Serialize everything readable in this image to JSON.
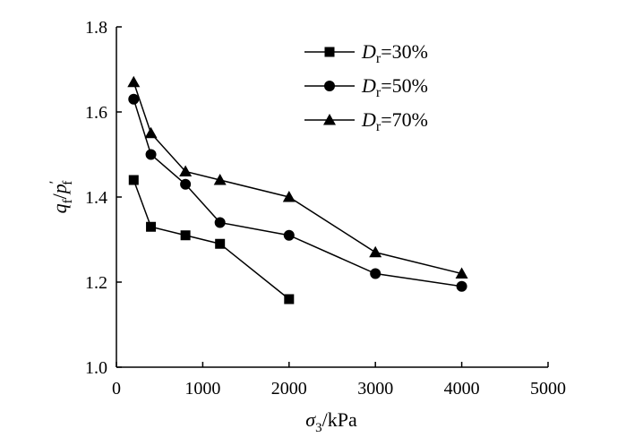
{
  "chart_data": {
    "type": "line",
    "xlabel": {
      "symbol": "σ",
      "sub": "3",
      "unit": "/kPa"
    },
    "ylabel": {
      "num": "q",
      "num_sub": "f",
      "den": "p",
      "den_prime": "′",
      "den_sub": "f"
    },
    "xlim": [
      0,
      5000
    ],
    "ylim": [
      1.0,
      1.8
    ],
    "xticks": [
      0,
      1000,
      2000,
      3000,
      4000,
      5000
    ],
    "yticks": [
      1.0,
      1.2,
      1.4,
      1.6,
      1.8
    ],
    "xtick_labels": [
      "0",
      "1000",
      "2000",
      "3000",
      "4000",
      "5000"
    ],
    "ytick_labels": [
      "1.0",
      "1.2",
      "1.4",
      "1.6",
      "1.8"
    ],
    "grid": false,
    "legend_position": "top-right",
    "series": [
      {
        "name": "Dr=30%",
        "label_var": "D",
        "label_sub": "r",
        "label_rest": "=30%",
        "marker": "square",
        "x": [
          200,
          400,
          800,
          1200,
          2000
        ],
        "y": [
          1.44,
          1.33,
          1.31,
          1.29,
          1.16
        ]
      },
      {
        "name": "Dr=50%",
        "label_var": "D",
        "label_sub": "r",
        "label_rest": "=50%",
        "marker": "circle",
        "x": [
          200,
          400,
          800,
          1200,
          2000,
          3000,
          4000
        ],
        "y": [
          1.63,
          1.5,
          1.43,
          1.34,
          1.31,
          1.22,
          1.19
        ]
      },
      {
        "name": "Dr=70%",
        "label_var": "D",
        "label_sub": "r",
        "label_rest": "=70%",
        "marker": "triangle",
        "x": [
          200,
          400,
          800,
          1200,
          2000,
          3000,
          4000
        ],
        "y": [
          1.67,
          1.55,
          1.46,
          1.44,
          1.4,
          1.27,
          1.22
        ]
      }
    ]
  }
}
